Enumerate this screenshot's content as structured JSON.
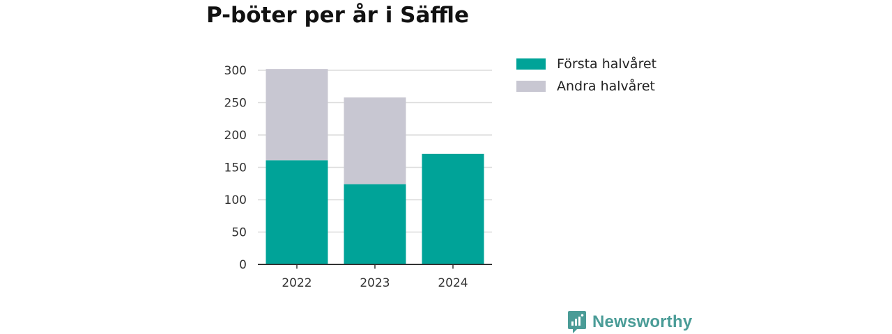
{
  "title": "P-böter per år i Säffle",
  "chart_data": {
    "type": "bar",
    "stacked": true,
    "categories": [
      "2022",
      "2023",
      "2024"
    ],
    "series": [
      {
        "name": "Första halvåret",
        "values": [
          161,
          124,
          171
        ],
        "color": "#00a398"
      },
      {
        "name": "Andra halvåret",
        "values": [
          141,
          134,
          0
        ],
        "color": "#c8c7d2"
      }
    ],
    "y_ticks": [
      0,
      50,
      100,
      150,
      200,
      250,
      300
    ],
    "ylim": [
      0,
      300
    ],
    "grid": true,
    "legend_position": "right"
  },
  "brand": {
    "name": "Newsworthy",
    "color": "#4a9c97",
    "icon": "newsworthy-logo-icon"
  }
}
